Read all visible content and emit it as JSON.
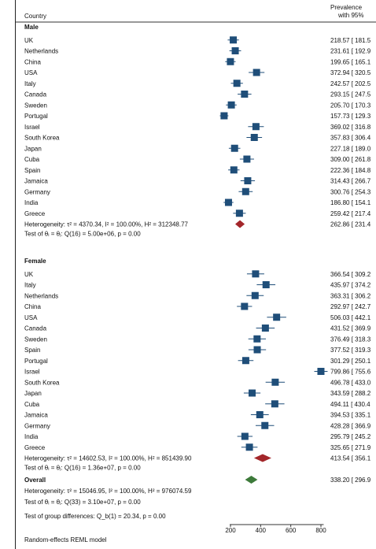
{
  "chart_data": {
    "type": "forest",
    "header": {
      "left": "Country",
      "right_line1": "Prevalence",
      "right_line2": "with 95%"
    },
    "x_axis": {
      "range": [
        150,
        820
      ],
      "ticks": [
        200,
        400,
        600,
        800
      ]
    },
    "groups": [
      {
        "name": "Male",
        "studies": [
          {
            "label": "UK",
            "est": 218.57,
            "lo": 181.5,
            "hi": 255.6,
            "ci_text": "218.57 [ 181.5"
          },
          {
            "label": "Netherlands",
            "est": 231.61,
            "lo": 192.9,
            "hi": 270.3,
            "ci_text": "231.61 [ 192.9"
          },
          {
            "label": "China",
            "est": 199.65,
            "lo": 165.1,
            "hi": 234.2,
            "ci_text": "199.65 [ 165.1"
          },
          {
            "label": "USA",
            "est": 372.94,
            "lo": 320.5,
            "hi": 425.4,
            "ci_text": "372.94 [ 320.5"
          },
          {
            "label": "Italy",
            "est": 242.57,
            "lo": 202.5,
            "hi": 282.6,
            "ci_text": "242.57 [ 202.5"
          },
          {
            "label": "Canada",
            "est": 293.15,
            "lo": 247.5,
            "hi": 338.8,
            "ci_text": "293.15 [ 247.5"
          },
          {
            "label": "Sweden",
            "est": 205.7,
            "lo": 170.3,
            "hi": 241.1,
            "ci_text": "205.70 [ 170.3"
          },
          {
            "label": "Portugal",
            "est": 157.73,
            "lo": 129.3,
            "hi": 186.2,
            "ci_text": "157.73 [ 129.3"
          },
          {
            "label": "Israel",
            "est": 369.02,
            "lo": 316.8,
            "hi": 421.2,
            "ci_text": "369.02 [ 316.8"
          },
          {
            "label": "South Korea",
            "est": 357.83,
            "lo": 306.4,
            "hi": 409.3,
            "ci_text": "357.83 [ 306.4"
          },
          {
            "label": "Japan",
            "est": 227.18,
            "lo": 189.0,
            "hi": 265.4,
            "ci_text": "227.18 [ 189.0"
          },
          {
            "label": "Cuba",
            "est": 309.0,
            "lo": 261.8,
            "hi": 356.2,
            "ci_text": "309.00 [ 261.8"
          },
          {
            "label": "Spain",
            "est": 222.36,
            "lo": 184.8,
            "hi": 259.9,
            "ci_text": "222.36 [ 184.8"
          },
          {
            "label": "Jamaica",
            "est": 314.43,
            "lo": 266.7,
            "hi": 362.2,
            "ci_text": "314.43 [ 266.7"
          },
          {
            "label": "Germany",
            "est": 300.76,
            "lo": 254.3,
            "hi": 347.2,
            "ci_text": "300.76 [ 254.3"
          },
          {
            "label": "India",
            "est": 186.8,
            "lo": 154.1,
            "hi": 219.5,
            "ci_text": "186.80 [ 154.1"
          },
          {
            "label": "Greece",
            "est": 259.42,
            "lo": 217.4,
            "hi": 301.4,
            "ci_text": "259.42 [ 217.4"
          }
        ],
        "summary": {
          "est": 262.86,
          "lo": 231.4,
          "hi": 294.3,
          "ci_text": "262.86 [ 231.4"
        },
        "heterogeneity": "Heterogeneity: τ² = 4370.34, I² = 100.00%, H² = 312348.77",
        "test": "Test of θᵢ = θⱼ: Q(16) = 5.00e+06, p = 0.00"
      },
      {
        "name": "Female",
        "studies": [
          {
            "label": "UK",
            "est": 366.54,
            "lo": 309.2,
            "hi": 423.9,
            "ci_text": "366.54 [ 309.2"
          },
          {
            "label": "Italy",
            "est": 435.97,
            "lo": 374.2,
            "hi": 497.7,
            "ci_text": "435.97 [ 374.2"
          },
          {
            "label": "Netherlands",
            "est": 363.31,
            "lo": 306.2,
            "hi": 420.4,
            "ci_text": "363.31 [ 306.2"
          },
          {
            "label": "China",
            "est": 292.97,
            "lo": 242.7,
            "hi": 343.2,
            "ci_text": "292.97 [ 242.7"
          },
          {
            "label": "USA",
            "est": 506.03,
            "lo": 442.1,
            "hi": 569.9,
            "ci_text": "506.03 [ 442.1"
          },
          {
            "label": "Canada",
            "est": 431.52,
            "lo": 369.9,
            "hi": 493.1,
            "ci_text": "431.52 [ 369.9"
          },
          {
            "label": "Sweden",
            "est": 376.49,
            "lo": 318.3,
            "hi": 434.7,
            "ci_text": "376.49 [ 318.3"
          },
          {
            "label": "Spain",
            "est": 377.52,
            "lo": 319.3,
            "hi": 435.7,
            "ci_text": "377.52 [ 319.3"
          },
          {
            "label": "Portugal",
            "est": 301.29,
            "lo": 250.1,
            "hi": 352.5,
            "ci_text": "301.29 [ 250.1"
          },
          {
            "label": "Israel",
            "est": 799.86,
            "lo": 755.6,
            "hi": 844.1,
            "ci_text": "799.86 [ 755.6"
          },
          {
            "label": "South Korea",
            "est": 496.78,
            "lo": 433.0,
            "hi": 560.6,
            "ci_text": "496.78 [ 433.0"
          },
          {
            "label": "Japan",
            "est": 343.59,
            "lo": 288.2,
            "hi": 399.0,
            "ci_text": "343.59 [ 288.2"
          },
          {
            "label": "Cuba",
            "est": 494.11,
            "lo": 430.4,
            "hi": 557.8,
            "ci_text": "494.11 [ 430.4"
          },
          {
            "label": "Jamaica",
            "est": 394.53,
            "lo": 335.1,
            "hi": 454.0,
            "ci_text": "394.53 [ 335.1"
          },
          {
            "label": "Germany",
            "est": 428.28,
            "lo": 366.9,
            "hi": 489.7,
            "ci_text": "428.28 [ 366.9"
          },
          {
            "label": "India",
            "est": 295.79,
            "lo": 245.2,
            "hi": 346.4,
            "ci_text": "295.79 [ 245.2"
          },
          {
            "label": "Greece",
            "est": 325.65,
            "lo": 271.9,
            "hi": 379.4,
            "ci_text": "325.65 [ 271.9"
          }
        ],
        "summary": {
          "est": 413.54,
          "lo": 356.1,
          "hi": 471.0,
          "ci_text": "413.54 [ 356.1"
        },
        "heterogeneity": "Heterogeneity: τ² = 14602.53, I² = 100.00%, H² = 851439.90",
        "test": "Test of θᵢ = θⱼ: Q(16) = 1.36e+07, p = 0.00"
      }
    ],
    "overall": {
      "label": "Overall",
      "est": 338.2,
      "lo": 296.9,
      "hi": 379.5,
      "ci_text": "338.20 [ 296.9",
      "heterogeneity": "Heterogeneity: τ² = 15046.95, I² = 100.00%, H² = 976074.59",
      "test": "Test of θᵢ = θⱼ: Q(33) = 3.10e+07, p = 0.00"
    },
    "group_test": "Test of group differences: Q_b(1) = 20.34, p = 0.00",
    "footnote": "Random-effects REML model",
    "colors": {
      "study_marker": "#1f4e79",
      "subgroup_diamond": "#a3262a",
      "overall_diamond": "#3d7a3a",
      "ci_line": "#1f4e79",
      "text": "#111111"
    }
  }
}
